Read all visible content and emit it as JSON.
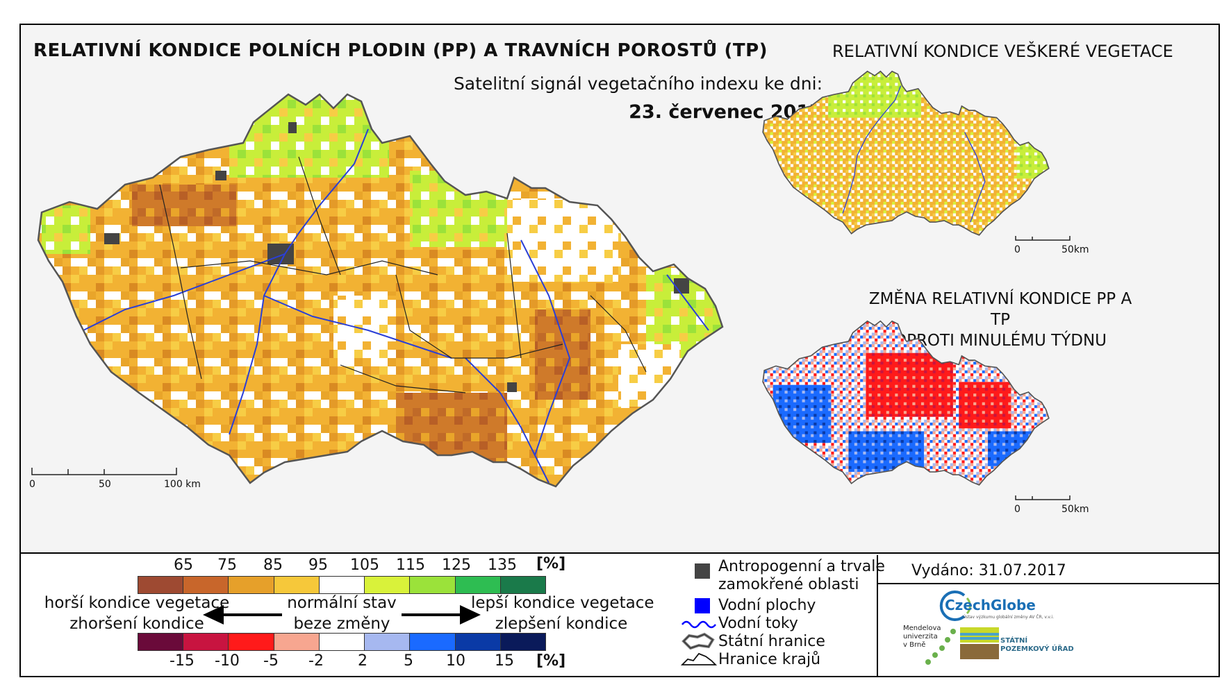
{
  "header": {
    "title": "RELATIVNÍ KONDICE POLNÍCH PLODIN (PP) A TRAVNÍCH POROSTŮ (TP)",
    "subtitle": "Satelitní signál vegetačního indexu ke dni:",
    "date": "23. červenec 2017"
  },
  "right_maps": {
    "top_title": "RELATIVNÍ KONDICE VEŠKERÉ VEGETACE",
    "bottom_title_line1": "ZMĚNA RELATIVNÍ KONDICE PP A TP",
    "bottom_title_line2": "OPROTI MINULÉMU TÝDNU"
  },
  "main_scale": {
    "labels": [
      "0",
      "50",
      "100 km"
    ]
  },
  "small_scale": {
    "labels": [
      "0",
      "50km"
    ]
  },
  "legend_condition": {
    "ticks": [
      "65",
      "75",
      "85",
      "95",
      "105",
      "115",
      "125",
      "135"
    ],
    "unit": "[%]",
    "colors": [
      "#9e4a32",
      "#c8662b",
      "#e6a02a",
      "#f6c83a",
      "#ffffff",
      "#d9f23a",
      "#9be23a",
      "#2ebd52",
      "#1a7a4a"
    ]
  },
  "legend_change": {
    "ticks": [
      "-15",
      "-10",
      "-5",
      "-2",
      "2",
      "5",
      "10",
      "15"
    ],
    "unit": "[%]",
    "colors": [
      "#6a0a3a",
      "#c81440",
      "#ff1a1a",
      "#f7a690",
      "#ffffff",
      "#a6b8f0",
      "#1a6aff",
      "#0a3aa6",
      "#0a1a5a"
    ]
  },
  "legend_text": {
    "worse": "horší kondice vegetace",
    "worse2": "zhoršení kondice",
    "normal": "normální stav",
    "normal2": "beze změny",
    "better": "lepší kondice vegetace",
    "better2": "zlepšení kondice"
  },
  "symbols": {
    "anthropogenic": "Antropogenní a trvale zamokřené oblasti",
    "anthropogenic_l1": "Antropogenní a trvale",
    "anthropogenic_l2": "zamokřené oblasti",
    "water_areas": "Vodní plochy",
    "rivers": "Vodní toky",
    "state_border": "Státní hranice",
    "region_border": "Hranice krajů"
  },
  "issued": "Vydáno: 31.07.2017",
  "logos": {
    "czechglobe": "CzechGlobe",
    "czechglobe_sub": "Ústav výzkumu globální změny AV ČR, v.v.i.",
    "mendel_1": "Mendelova",
    "mendel_2": "univerzita",
    "mendel_3": "v Brně",
    "spu_1": "STÁTNÍ",
    "spu_2": "POZEMKOVÝ ÚŘAD"
  }
}
